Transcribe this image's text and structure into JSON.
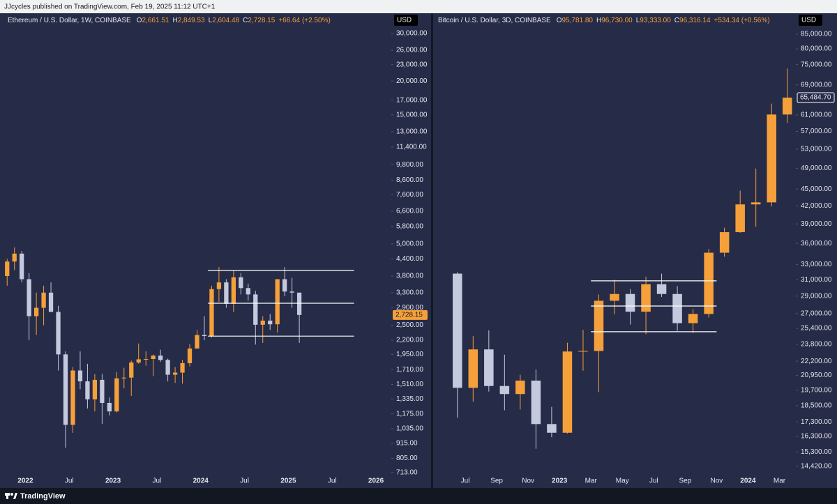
{
  "header": {
    "text": "JJcycles published on TradingView.com, Feb 19, 2025 11:12 UTC+1"
  },
  "footer": {
    "brand": "TradingView"
  },
  "chart_data": [
    {
      "type": "candlestick",
      "title": "Ethereum / U.S. Dollar, 1W, COINBASE",
      "currency": "USD",
      "ohlc_legend": [
        {
          "key": "O",
          "value": "2,661.51"
        },
        {
          "key": "H",
          "value": "2,849.53"
        },
        {
          "key": "L",
          "value": "2,604.48"
        },
        {
          "key": "C",
          "value": "2,728.15"
        }
      ],
      "change": "+66.64 (+2.50%)",
      "log_scale": true,
      "up_color": "#f5a03a",
      "down_color": "#c5c9de",
      "xlim": [
        "2021-10",
        "2026-03"
      ],
      "ylim": [
        704,
        35000
      ],
      "xticks": [
        {
          "value": "2022-01",
          "label": "2022"
        },
        {
          "value": "2022-07",
          "label": "Jul"
        },
        {
          "value": "2023-01",
          "label": "2023"
        },
        {
          "value": "2023-07",
          "label": "Jul"
        },
        {
          "value": "2024-01",
          "label": "2024"
        },
        {
          "value": "2024-07",
          "label": "Jul"
        },
        {
          "value": "2025-01",
          "label": "2025"
        },
        {
          "value": "2025-07",
          "label": "Jul"
        },
        {
          "value": "2026-01",
          "label": "2026"
        }
      ],
      "yticks": [
        {
          "value": 30000,
          "label": "30,000.00"
        },
        {
          "value": 26000,
          "label": "26,000.00"
        },
        {
          "value": 23000,
          "label": "23,000.00"
        },
        {
          "value": 20000,
          "label": "20,000.00"
        },
        {
          "value": 17000,
          "label": "17,000.00"
        },
        {
          "value": 15000,
          "label": "15,000.00"
        },
        {
          "value": 13000,
          "label": "13,000.00"
        },
        {
          "value": 11400,
          "label": "11,400.00"
        },
        {
          "value": 9800,
          "label": "9,800.00"
        },
        {
          "value": 8600,
          "label": "8,600.00"
        },
        {
          "value": 7600,
          "label": "7,600.00"
        },
        {
          "value": 6600,
          "label": "6,600.00"
        },
        {
          "value": 5800,
          "label": "5,800.00"
        },
        {
          "value": 5000,
          "label": "5,000.00"
        },
        {
          "value": 4400,
          "label": "4,400.00"
        },
        {
          "value": 3800,
          "label": "3,800.00"
        },
        {
          "value": 3300,
          "label": "3,300.00"
        },
        {
          "value": 2900,
          "label": "2,900.00"
        },
        {
          "value": 2500,
          "label": "2,500.00"
        },
        {
          "value": 2200,
          "label": "2,200.00"
        },
        {
          "value": 1950,
          "label": "1,950.00"
        },
        {
          "value": 1710,
          "label": "1,710.00"
        },
        {
          "value": 1510,
          "label": "1,510.00"
        },
        {
          "value": 1335,
          "label": "1,335.00"
        },
        {
          "value": 1175,
          "label": "1,175.00"
        },
        {
          "value": 1035,
          "label": "1,035.00"
        },
        {
          "value": 915,
          "label": "915.00"
        },
        {
          "value": 805,
          "label": "805.00"
        },
        {
          "value": 713,
          "label": "713.00"
        }
      ],
      "price_label": {
        "value": 2728.15,
        "label": "2,728.15",
        "color": "#f5a03a"
      },
      "levels": [
        {
          "value": 3985,
          "from": "2024-02",
          "to": "2025-10"
        },
        {
          "value": 3015,
          "from": "2024-02",
          "to": "2025-10"
        },
        {
          "value": 2278,
          "from": "2024-02",
          "to": "2025-10"
        }
      ],
      "candles": {
        "x": [
          "2021-10",
          "2021-11",
          "2021-12",
          "2022-01",
          "2022-02",
          "2022-03",
          "2022-04",
          "2022-05",
          "2022-06",
          "2022-07",
          "2022-08",
          "2022-09",
          "2022-10",
          "2022-11",
          "2022-12",
          "2023-01",
          "2023-02",
          "2023-03",
          "2023-04",
          "2023-05",
          "2023-06",
          "2023-07",
          "2023-08",
          "2023-09",
          "2023-10",
          "2023-11",
          "2023-12",
          "2024-01",
          "2024-02",
          "2024-03",
          "2024-04",
          "2024-05",
          "2024-06",
          "2024-07",
          "2024-08",
          "2024-09",
          "2024-10",
          "2024-11",
          "2024-12",
          "2025-01",
          "2025-02"
        ],
        "open": [
          3800,
          4300,
          4600,
          3700,
          2700,
          2900,
          3300,
          2800,
          1950,
          1070,
          1700,
          1550,
          1330,
          1570,
          1290,
          1200,
          1590,
          1600,
          1820,
          1870,
          1875,
          1930,
          1860,
          1640,
          1670,
          1810,
          2050,
          2300,
          2280,
          3400,
          3600,
          3000,
          3760,
          3430,
          3250,
          2510,
          2600,
          2520,
          3700,
          3330,
          3300
        ],
        "high": [
          4400,
          4850,
          4700,
          3900,
          3300,
          3500,
          3600,
          2950,
          2000,
          1750,
          2000,
          1800,
          1650,
          1650,
          1350,
          1680,
          1740,
          1850,
          2140,
          2000,
          1950,
          2030,
          1880,
          1750,
          1860,
          2130,
          2400,
          2700,
          3500,
          4100,
          3700,
          3970,
          3900,
          3560,
          3350,
          2700,
          2750,
          3700,
          4100,
          3740,
          3300
        ],
        "low": [
          3500,
          4000,
          3600,
          2200,
          2300,
          2500,
          2800,
          1700,
          880,
          1000,
          1450,
          1230,
          1200,
          1080,
          1160,
          1190,
          1460,
          1370,
          1800,
          1770,
          1620,
          1830,
          1550,
          1530,
          1520,
          1760,
          2100,
          2200,
          2250,
          3050,
          2900,
          2800,
          3250,
          3080,
          2120,
          2150,
          2400,
          2350,
          3200,
          2900,
          2150
        ],
        "close": [
          4300,
          4600,
          3700,
          2700,
          2900,
          3300,
          2800,
          1950,
          1070,
          1700,
          1550,
          1330,
          1570,
          1290,
          1200,
          1590,
          1600,
          1820,
          1870,
          1875,
          1930,
          1860,
          1640,
          1670,
          1810,
          2050,
          2300,
          2280,
          3400,
          3600,
          3000,
          3760,
          3430,
          3250,
          2510,
          2600,
          2520,
          3700,
          3330,
          3300,
          2728.15
        ]
      }
    },
    {
      "type": "candlestick",
      "title": "Bitcoin / U.S. Dollar, 3D, COINBASE",
      "currency": "USD",
      "ohlc_legend": [
        {
          "key": "O",
          "value": "95,781.80"
        },
        {
          "key": "H",
          "value": "96,730.00"
        },
        {
          "key": "L",
          "value": "93,333.00"
        },
        {
          "key": "C",
          "value": "96,316.14"
        }
      ],
      "change": "+534.34 (+0.56%)",
      "log_scale": true,
      "up_color": "#f5a03a",
      "down_color": "#c5c9de",
      "xlim": [
        "2022-05",
        "2024-04"
      ],
      "ylim": [
        13970,
        91800
      ],
      "xticks": [
        {
          "value": "2022-07",
          "label": "Jul"
        },
        {
          "value": "2022-09",
          "label": "Sep"
        },
        {
          "value": "2022-11",
          "label": "Nov"
        },
        {
          "value": "2023-01",
          "label": "2023"
        },
        {
          "value": "2023-03",
          "label": "Mar"
        },
        {
          "value": "2023-05",
          "label": "May"
        },
        {
          "value": "2023-07",
          "label": "Jul"
        },
        {
          "value": "2023-09",
          "label": "Sep"
        },
        {
          "value": "2023-11",
          "label": "Nov"
        },
        {
          "value": "2024-01",
          "label": "2024"
        },
        {
          "value": "2024-03",
          "label": "Mar"
        }
      ],
      "yticks": [
        {
          "value": 85000,
          "label": "85,000.00"
        },
        {
          "value": 80000,
          "label": "80,000.00"
        },
        {
          "value": 75000,
          "label": "75,000.00"
        },
        {
          "value": 69000,
          "label": "69,000.00"
        },
        {
          "value": 61000,
          "label": "61,000.00"
        },
        {
          "value": 57000,
          "label": "57,000.00"
        },
        {
          "value": 53000,
          "label": "53,000.00"
        },
        {
          "value": 49000,
          "label": "49,000.00"
        },
        {
          "value": 45000,
          "label": "45,000.00"
        },
        {
          "value": 42000,
          "label": "42,000.00"
        },
        {
          "value": 39000,
          "label": "39,000.00"
        },
        {
          "value": 36000,
          "label": "36,000.00"
        },
        {
          "value": 33000,
          "label": "33,000.00"
        },
        {
          "value": 31000,
          "label": "31,000.00"
        },
        {
          "value": 29000,
          "label": "29,000.00"
        },
        {
          "value": 27000,
          "label": "27,000.00"
        },
        {
          "value": 25400,
          "label": "25,400.00"
        },
        {
          "value": 23800,
          "label": "23,800.00"
        },
        {
          "value": 22200,
          "label": "22,200.00"
        },
        {
          "value": 20950,
          "label": "20,950.00"
        },
        {
          "value": 19700,
          "label": "19,700.00"
        },
        {
          "value": 18500,
          "label": "18,500.00"
        },
        {
          "value": 17300,
          "label": "17,300.00"
        },
        {
          "value": 16300,
          "label": "16,300.00"
        },
        {
          "value": 15300,
          "label": "15,300.00"
        },
        {
          "value": 14420,
          "label": "14,420.00"
        }
      ],
      "price_label": {
        "value": 65484.7,
        "label": "65,484.70",
        "color": "#262b47"
      },
      "levels": [
        {
          "value": 30870,
          "from": "2023-03",
          "to": "2023-11"
        },
        {
          "value": 27840,
          "from": "2023-03",
          "to": "2023-11"
        },
        {
          "value": 25050,
          "from": "2023-03",
          "to": "2023-11"
        }
      ],
      "candles": {
        "x": [
          "2022-06",
          "2022-07",
          "2022-08",
          "2022-09",
          "2022-10",
          "2022-11",
          "2022-12",
          "2023-01",
          "2023-02",
          "2023-03",
          "2023-04",
          "2023-05",
          "2023-06",
          "2023-07",
          "2023-08",
          "2023-09",
          "2023-10",
          "2023-11",
          "2023-12",
          "2024-01",
          "2024-02",
          "2024-03"
        ],
        "open": [
          31800,
          19900,
          23300,
          20050,
          19400,
          20500,
          17150,
          16550,
          23100,
          23150,
          28450,
          29250,
          27200,
          30450,
          29250,
          25950,
          26950,
          34650,
          37700,
          42250,
          42600,
          61100
        ],
        "high": [
          32000,
          24600,
          25200,
          22800,
          21000,
          21450,
          18400,
          23950,
          25250,
          29200,
          31000,
          29850,
          31400,
          31800,
          30200,
          27500,
          35200,
          38400,
          44700,
          48950,
          63900,
          73800
        ],
        "low": [
          17600,
          18800,
          19600,
          18150,
          18200,
          15500,
          16250,
          16500,
          21350,
          19550,
          26900,
          25800,
          24800,
          28900,
          25150,
          24900,
          26550,
          34100,
          37600,
          38550,
          41900,
          59000
        ],
        "close": [
          19900,
          23300,
          20050,
          19400,
          20500,
          17150,
          16550,
          23100,
          23150,
          28450,
          29250,
          27200,
          30450,
          29250,
          25950,
          26950,
          34650,
          37700,
          42250,
          42600,
          61100,
          65484.7
        ]
      }
    }
  ]
}
